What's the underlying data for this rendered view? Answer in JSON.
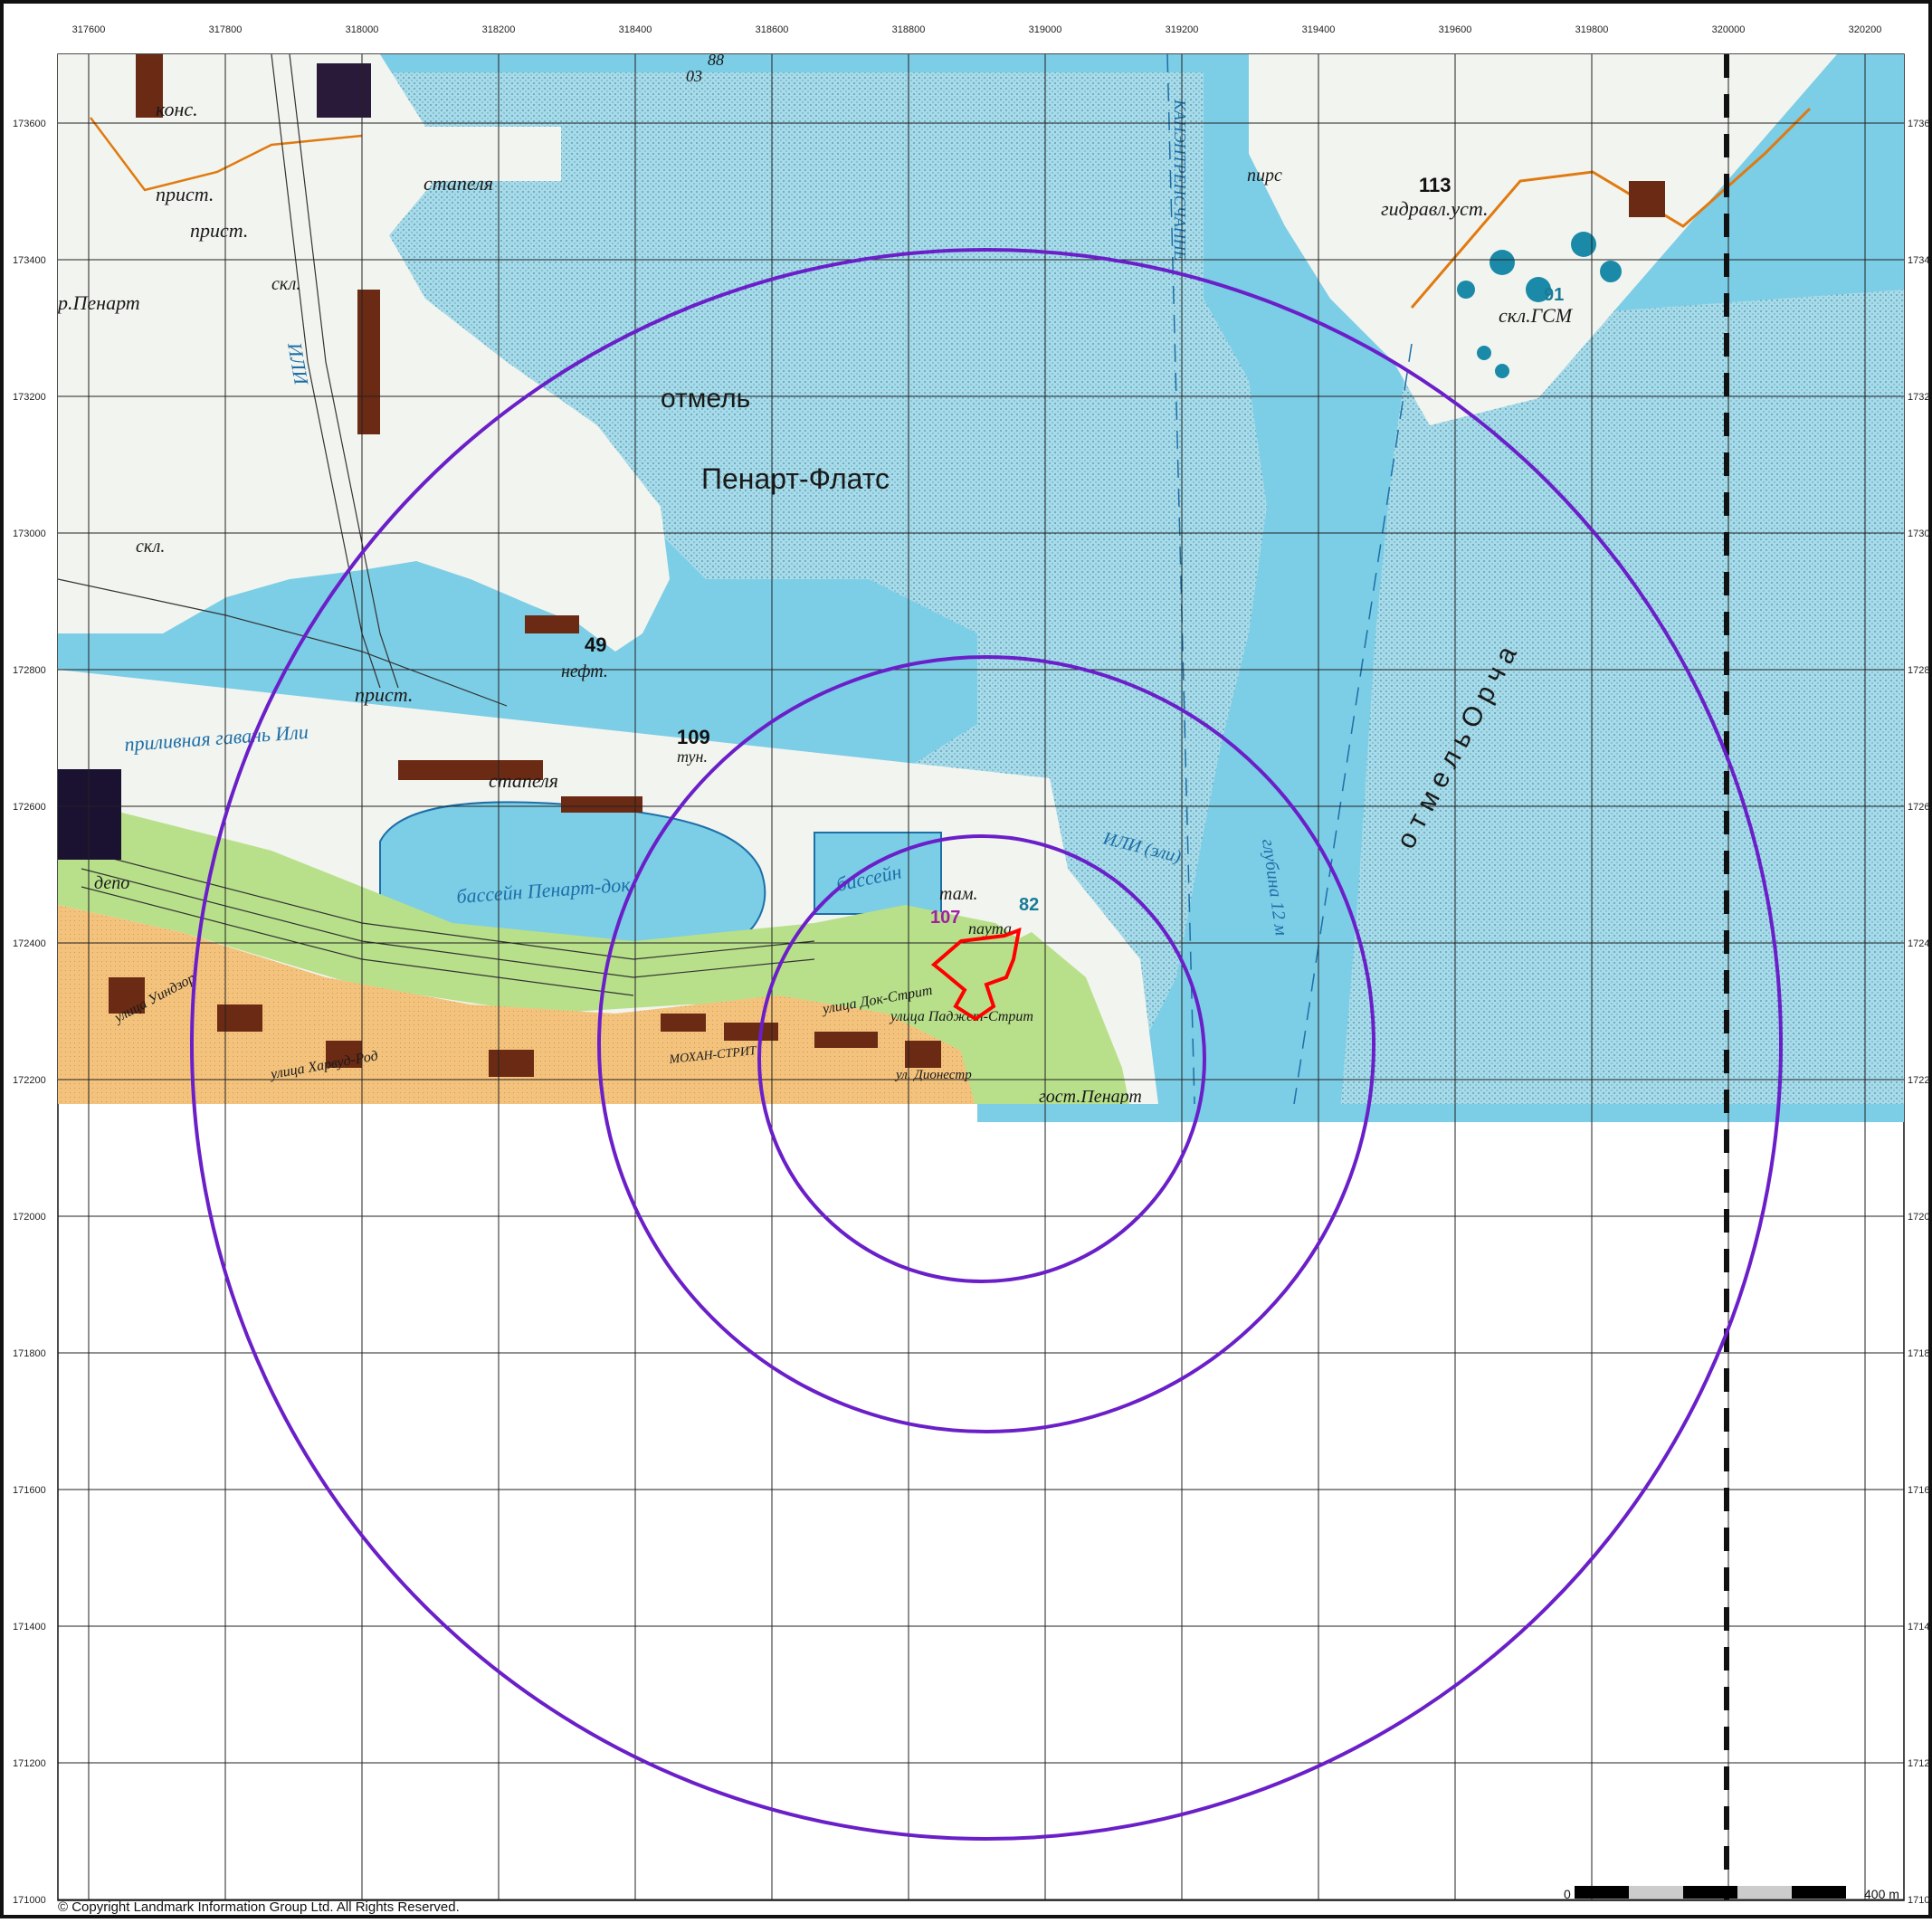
{
  "grid": {
    "eastings": [
      "317600",
      "317800",
      "318000",
      "318200",
      "318400",
      "318600",
      "318800",
      "319000",
      "319200",
      "319400",
      "319600",
      "319800",
      "320000",
      "320200"
    ],
    "northings": [
      "173600",
      "173400",
      "173200",
      "173000",
      "172800",
      "172600",
      "172400",
      "172200",
      "172000",
      "171800",
      "171600",
      "171400",
      "171200",
      "171000"
    ],
    "right_labels": [
      "1736",
      "1734",
      "1732",
      "1730",
      "1728",
      "1726",
      "1724",
      "1722",
      "1720",
      "1718",
      "1716",
      "1714",
      "1712",
      "1710"
    ]
  },
  "labels": {
    "kons": "конс.",
    "prist1": "прист.",
    "prist2": "прист.",
    "skl": "скл.",
    "penart_town": "р.Пенарт",
    "ili1": "ИЛИ",
    "stapelya1": "стапеля",
    "n88": "88",
    "n03": "03",
    "otmel": "отмель",
    "penart_flats": "Пенарт-Флатс",
    "kanal": "КАНЭНТРЕНСЧАННЕ",
    "pirs": "пирс",
    "n113": "113",
    "gidravl": "гидравл.уст.",
    "n91": "91",
    "skl_gsm": "скл.ГСМ",
    "skl2": "скл.",
    "n49": "49",
    "neft": "нефт.",
    "prist3": "прист.",
    "n109": "109",
    "tun": "тун.",
    "prilivnaya": "приливная гавань Или",
    "stapelya2": "стапеля",
    "basseyn1": "бассейн",
    "basseyn_dock": "бассейн Пенарт-док",
    "depo": "депо",
    "tam": "там.",
    "n107": "107",
    "n82": "82",
    "pauta": "паута",
    "ili2": "ИЛИ (эли)",
    "glubina": "глубина 12 м",
    "otmel_orch": "о т м е л ь  О р ч а",
    "ul_dok": "улица Док-Стрит",
    "ul_pan": "улица Паджет-Стрит",
    "mohan": "МОХАН-СТРИТ",
    "ul_dionestr": "ул. Дионестр",
    "ul_kharvud": "улица Харвуд-Род",
    "ulitsa_vin": "улица Уиндзор",
    "gost": "гост.Пенарт"
  },
  "scale": {
    "start": "0",
    "end": "400 m"
  },
  "copyright": "© Copyright Landmark Information Group Ltd. All Rights Reserved.",
  "colors": {
    "sea": "#7ccde6",
    "flats": "#a8dcea",
    "park": "#b8e08a",
    "town": "#f3c37e",
    "building": "#6b2a14",
    "ring": "#6a1fc8",
    "site": "#ff0000"
  }
}
